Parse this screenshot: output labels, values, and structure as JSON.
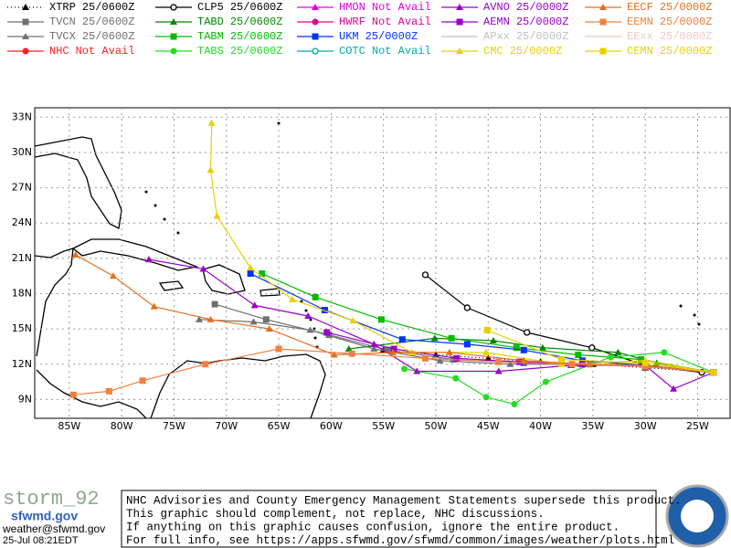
{
  "chart_data": {
    "type": "line",
    "xlim": [
      -88.3,
      -21.9
    ],
    "ylim": [
      7.4,
      33.8
    ],
    "xticks": [
      {
        "value": -85,
        "label": "85W"
      },
      {
        "value": -80,
        "label": "80W"
      },
      {
        "value": -75,
        "label": "75W"
      },
      {
        "value": -70,
        "label": "70W"
      },
      {
        "value": -65,
        "label": "65W"
      },
      {
        "value": -60,
        "label": "60W"
      },
      {
        "value": -55,
        "label": "55W"
      },
      {
        "value": -50,
        "label": "50W"
      },
      {
        "value": -45,
        "label": "45W"
      },
      {
        "value": -40,
        "label": "40W"
      },
      {
        "value": -35,
        "label": "35W"
      },
      {
        "value": -30,
        "label": "30W"
      },
      {
        "value": -25,
        "label": "25W"
      }
    ],
    "yticks": [
      {
        "value": 9,
        "label": "9N"
      },
      {
        "value": 12,
        "label": "12N"
      },
      {
        "value": 15,
        "label": "15N"
      },
      {
        "value": 18,
        "label": "18N"
      },
      {
        "value": 21,
        "label": "21N"
      },
      {
        "value": 24,
        "label": "24N"
      },
      {
        "value": 27,
        "label": "27N"
      },
      {
        "value": 30,
        "label": "30N"
      },
      {
        "value": 33,
        "label": "33N"
      }
    ],
    "grid": true,
    "series": [
      {
        "name": "XTRP",
        "status": "25/0600Z",
        "color": "#000000",
        "marker": "triangle",
        "line_style": "dotted",
        "x": [
          -23.5,
          -30,
          -35,
          -40,
          -45,
          -50,
          -55
        ],
        "values": [
          11.3,
          11.7,
          12,
          12.2,
          12.5,
          12.8,
          13.2
        ]
      },
      {
        "name": "TVCN",
        "status": "25/0600Z",
        "color": "#707070",
        "marker": "square",
        "line_style": "solid",
        "x": [
          -23.5,
          -30,
          -35.3,
          -41.6,
          -48.3,
          -54.6,
          -60.2,
          -66.2,
          -71.1
        ],
        "values": [
          11.3,
          11.9,
          12,
          12.1,
          12.4,
          13.2,
          14.5,
          15.8,
          17.1
        ]
      },
      {
        "name": "TVCX",
        "status": "25/0600Z",
        "color": "#707070",
        "marker": "triangle",
        "line_style": "solid",
        "x": [
          -23.5,
          -30,
          -36.2,
          -42.9,
          -49.6,
          -55.9,
          -62,
          -67.4,
          -72.6
        ],
        "values": [
          11.3,
          11.9,
          12,
          12,
          12.3,
          13.3,
          14.9,
          15.6,
          15.8
        ]
      },
      {
        "name": "NHC",
        "status": "Not Avail",
        "color": "#ff2020",
        "marker": "circle",
        "line_style": "solid"
      },
      {
        "name": "CLP5",
        "status": "25/0600Z",
        "color": "#000000",
        "marker": "open-circle",
        "line_style": "solid",
        "x": [
          -24.6,
          -30,
          -35.1,
          -41.3,
          -47,
          -51
        ],
        "values": [
          11.3,
          11.9,
          13.4,
          14.7,
          16.8,
          19.6
        ]
      },
      {
        "name": "TABD",
        "status": "25/0600Z",
        "color": "#008800",
        "marker": "triangle",
        "line_style": "solid",
        "x": [
          -23.5,
          -28.9,
          -32.6,
          -39.8,
          -44.5,
          -50.1,
          -58.3
        ],
        "values": [
          11.3,
          12.1,
          13,
          13.4,
          14,
          14.2,
          13.3
        ]
      },
      {
        "name": "TABM",
        "status": "25/0600Z",
        "color": "#00bb00",
        "marker": "square",
        "line_style": "solid",
        "x": [
          -23.5,
          -30.4,
          -36.4,
          -42.3,
          -48.5,
          -55.2,
          -61.5,
          -66.6
        ],
        "values": [
          11.3,
          12.4,
          12.8,
          13.4,
          14.2,
          15.8,
          17.7,
          19.7
        ]
      },
      {
        "name": "TABS",
        "status": "25/0600Z",
        "color": "#22dd22",
        "marker": "circle",
        "line_style": "solid",
        "x": [
          -23.5,
          -28.2,
          -33.3,
          -39.5,
          -42.5,
          -45.2,
          -48.1,
          -53
        ],
        "values": [
          11.3,
          13,
          12.6,
          10.5,
          8.6,
          9.2,
          10.8,
          11.6
        ]
      },
      {
        "name": "HMON",
        "status": "Not Avail",
        "color": "#e000e0",
        "marker": "triangle",
        "line_style": "solid"
      },
      {
        "name": "HWRF",
        "status": "Not Avail",
        "color": "#e0008f",
        "marker": "circle",
        "line_style": "solid"
      },
      {
        "name": "UKM",
        "status": "25/0000Z",
        "color": "#0033ff",
        "marker": "square",
        "line_style": "solid",
        "x": [
          -23.5,
          -30,
          -36,
          -41.6,
          -47,
          -53.2,
          -60.6,
          -67.7
        ],
        "values": [
          11.3,
          11.9,
          12.3,
          13.2,
          13.7,
          14.1,
          16.6,
          19.7
        ]
      },
      {
        "name": "COTC",
        "status": "Not Avail",
        "color": "#00aaaa",
        "marker": "open-circle",
        "line_style": "solid"
      },
      {
        "name": "AVNO",
        "status": "25/0000Z",
        "color": "#9900cc",
        "marker": "triangle",
        "line_style": "solid",
        "x": [
          -23.5,
          -27.3,
          -30,
          -37.1,
          -44,
          -51.8,
          -55.9,
          -62.2,
          -67.3,
          -72.2,
          -77.4
        ],
        "values": [
          11.3,
          9.9,
          11.9,
          11.9,
          11.4,
          11.4,
          13.7,
          16.1,
          17,
          20.1,
          20.9
        ]
      },
      {
        "name": "AEMN",
        "status": "25/0000Z",
        "color": "#9900cc",
        "marker": "square",
        "line_style": "solid",
        "x": [
          -23.5,
          -30,
          -36,
          -42,
          -48,
          -54,
          -60.4
        ],
        "values": [
          11.3,
          11.8,
          12,
          12.2,
          12.5,
          13.3,
          14.7
        ]
      },
      {
        "name": "APxx",
        "status": "25/0000Z",
        "color": "#c0c0c0",
        "marker": "none",
        "line_style": "solid"
      },
      {
        "name": "CMC",
        "status": "25/0000Z",
        "color": "#e8d000",
        "marker": "triangle",
        "line_style": "solid",
        "x": [
          -23.5,
          -30,
          -38,
          -45.2,
          -52.3,
          -57.9,
          -63.7,
          -67.7,
          -70.9,
          -71.5,
          -71.4
        ],
        "values": [
          11.3,
          12.3,
          12,
          13,
          13,
          15.7,
          17.5,
          20.2,
          24.6,
          28.5,
          32.5
        ]
      },
      {
        "name": "EECF",
        "status": "25/0000Z",
        "color": "#e07020",
        "marker": "triangle",
        "line_style": "solid",
        "x": [
          -23.5,
          -30,
          -35.3,
          -41.6,
          -48.7,
          -54.1,
          -59.7,
          -65.9,
          -71.5,
          -76.9,
          -80.8,
          -84.4
        ],
        "values": [
          11.3,
          11.9,
          12,
          12.3,
          13,
          13,
          12.8,
          15,
          15.8,
          16.9,
          19.5,
          21.3
        ]
      },
      {
        "name": "EEMN",
        "status": "25/0000Z",
        "color": "#f08040",
        "marker": "square",
        "line_style": "solid",
        "x": [
          -23.5,
          -30,
          -37,
          -44,
          -51,
          -58,
          -65,
          -72,
          -78,
          -81.2,
          -84.6
        ],
        "values": [
          11.3,
          11.8,
          12,
          12.2,
          12.5,
          12.9,
          13.3,
          12,
          10.6,
          9.7,
          9.4
        ]
      },
      {
        "name": "EExx",
        "status": "25/0000Z",
        "color": "#f0c8c8",
        "marker": "none",
        "line_style": "solid"
      },
      {
        "name": "CEMN",
        "status": "25/0000Z",
        "color": "#e8d000",
        "marker": "square",
        "line_style": "solid",
        "x": [
          -23.5,
          -30,
          -38,
          -45.1
        ],
        "values": [
          11.3,
          12.1,
          12.4,
          14.9
        ]
      }
    ]
  },
  "footer": {
    "storm": "storm_92",
    "site": "sfwmd.gov",
    "email": "weather@sfwmd.gov",
    "timestamp": "25-Jul 08:21EDT",
    "disclaimer": [
      "NHC Advisories and County Emergency Management Statements supersede this product.",
      "This graphic should complement, not replace, NHC discussions.",
      "If anything on this graphic causes confusion, ignore the entire product.",
      "For full info, see  https://apps.sfwmd.gov/sfwmd/common/images/weather/plots.html"
    ]
  }
}
